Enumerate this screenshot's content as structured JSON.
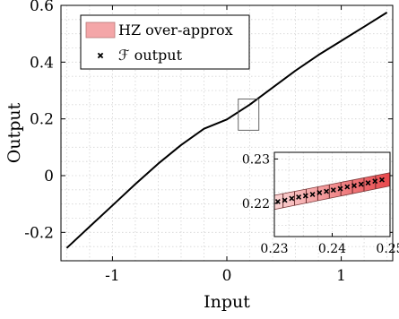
{
  "chart_data": [
    {
      "type": "line",
      "xlabel": "Input",
      "ylabel": "Output",
      "xlim": [
        -1.45,
        1.45
      ],
      "ylim": [
        -0.3,
        0.6
      ],
      "grid": true,
      "xticks": [
        -1,
        0,
        1
      ],
      "yticks": [
        -0.2,
        0,
        0.2,
        0.4,
        0.6
      ],
      "xtick_labels": [
        "-1",
        "0",
        "1"
      ],
      "ytick_labels": [
        "-0.2",
        "0",
        "0.2",
        "0.4",
        "0.6"
      ],
      "legend": {
        "placement": "top-left",
        "entries": [
          {
            "label": "HZ over-approx",
            "marker": "patch",
            "color": "#f4a6a8"
          },
          {
            "label": "ℱ output",
            "marker": "x",
            "color": "#000000"
          }
        ]
      },
      "series": [
        {
          "color": "#000000",
          "x": [
            -1.4,
            -1.2,
            -1.0,
            -0.8,
            -0.6,
            -0.4,
            -0.2,
            0.0,
            0.2,
            0.4,
            0.6,
            0.8,
            1.0,
            1.2,
            1.4
          ],
          "y": [
            -0.255,
            -0.18,
            -0.105,
            -0.03,
            0.042,
            0.108,
            0.165,
            0.198,
            0.25,
            0.31,
            0.37,
            0.425,
            0.475,
            0.525,
            0.575
          ]
        }
      ],
      "highlight_box": {
        "xlim": [
          0.1,
          0.28
        ],
        "ylim": [
          0.16,
          0.27
        ]
      }
    },
    {
      "type": "line",
      "xlim": [
        0.23,
        0.25
      ],
      "ylim": [
        0.2125,
        0.2315
      ],
      "xticks": [
        0.23,
        0.24,
        0.25
      ],
      "yticks": [
        0.22,
        0.23
      ],
      "xtick_labels": [
        "0.23",
        "0.24",
        "0.25"
      ],
      "ytick_labels": [
        "0.22",
        "0.23"
      ],
      "over_approx_band": {
        "x": [
          0.23,
          0.25
        ],
        "y_lower": [
          0.2186,
          0.2239
        ],
        "y_upper": [
          0.2218,
          0.2269
        ],
        "color_start": "#fad4d4",
        "color_end": "#e8484c"
      },
      "segments_x": [
        0.2315,
        0.2335,
        0.2355,
        0.2375,
        0.2395,
        0.2415,
        0.2435,
        0.2455,
        0.2475
      ],
      "output_points": {
        "x": [
          0.2306,
          0.2318,
          0.233,
          0.2342,
          0.2354,
          0.2366,
          0.2378,
          0.239,
          0.2402,
          0.2414,
          0.2426,
          0.2438,
          0.245,
          0.2462,
          0.2474,
          0.2486
        ],
        "y": [
          0.2204,
          0.2207,
          0.2211,
          0.2214,
          0.2217,
          0.222,
          0.2224,
          0.2227,
          0.223,
          0.2233,
          0.2237,
          0.224,
          0.2243,
          0.2246,
          0.225,
          0.2253
        ]
      }
    }
  ]
}
